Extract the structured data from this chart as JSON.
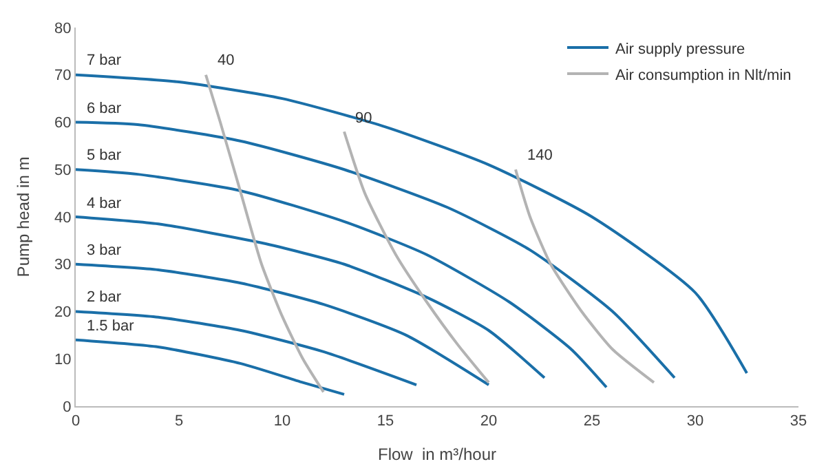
{
  "chart_data": {
    "type": "line",
    "xlabel": "Flow  in m³/hour",
    "ylabel": "Pump head in m",
    "xlim": [
      0,
      35
    ],
    "xticks": [
      0,
      5,
      10,
      15,
      20,
      25,
      30,
      35
    ],
    "ylim": [
      0,
      80
    ],
    "yticks": [
      0,
      10,
      20,
      30,
      40,
      50,
      60,
      70,
      80
    ],
    "legend": "top right",
    "marker": "none",
    "line_style": "solid",
    "series": [
      {
        "name": "Air supply pressure",
        "color": "#1a6fa8",
        "x": [
          0,
          5,
          10,
          15,
          20,
          25,
          30,
          32.5
        ],
        "values": [
          70,
          68.5,
          65,
          59,
          51,
          40,
          24,
          7
        ]
      },
      {
        "color": "#1a6fa8",
        "x": [
          0,
          3,
          8,
          13,
          18,
          22,
          26,
          29
        ],
        "values": [
          60,
          59.5,
          56,
          50,
          42,
          33,
          20,
          6
        ]
      },
      {
        "color": "#1a6fa8",
        "x": [
          0,
          3,
          8,
          13,
          17,
          21,
          24,
          25.7
        ],
        "values": [
          50,
          49,
          45.5,
          39,
          32,
          22,
          12,
          4
        ]
      },
      {
        "color": "#1a6fa8",
        "x": [
          0,
          4,
          9,
          13,
          17,
          20,
          22.7
        ],
        "values": [
          40,
          38.5,
          34.5,
          30,
          23,
          16,
          6
        ]
      },
      {
        "color": "#1a6fa8",
        "x": [
          0,
          4,
          8,
          12,
          16,
          20
        ],
        "values": [
          30,
          28.8,
          26,
          21.5,
          15,
          4.5
        ]
      },
      {
        "color": "#1a6fa8",
        "x": [
          0,
          4,
          8,
          12,
          16.5
        ],
        "values": [
          20,
          18.8,
          16,
          11.5,
          4.5
        ]
      },
      {
        "color": "#1a6fa8",
        "x": [
          0,
          4,
          8,
          11,
          13
        ],
        "values": [
          14,
          12.5,
          9,
          5,
          2.5
        ]
      },
      {
        "name": "Air consumption in Nlt/min",
        "color": "#b3b3b3",
        "x": [
          6.3,
          7,
          8,
          9,
          10,
          11,
          12
        ],
        "values": [
          70,
          60,
          45,
          30,
          19,
          10,
          3
        ]
      },
      {
        "color": "#b3b3b3",
        "x": [
          13,
          14,
          15.5,
          17,
          18.5,
          20
        ],
        "values": [
          58,
          45,
          32,
          22,
          13,
          5
        ]
      },
      {
        "color": "#b3b3b3",
        "x": [
          21.3,
          22,
          23,
          24.5,
          26,
          28
        ],
        "values": [
          50,
          40,
          30,
          20,
          12,
          5
        ]
      }
    ],
    "annotations": [
      {
        "text": "7 bar",
        "x": 0,
        "y": 70
      },
      {
        "text": "6 bar",
        "x": 0,
        "y": 60
      },
      {
        "text": "5 bar",
        "x": 0,
        "y": 50
      },
      {
        "text": "4 bar",
        "x": 0,
        "y": 40
      },
      {
        "text": "3 bar",
        "x": 0,
        "y": 30
      },
      {
        "text": "2 bar",
        "x": 0,
        "y": 20
      },
      {
        "text": "1.5 bar",
        "x": 0,
        "y": 14
      },
      {
        "text": "40",
        "x": 6.3,
        "y": 70
      },
      {
        "text": "90",
        "x": 13,
        "y": 58
      },
      {
        "text": "140",
        "x": 21.3,
        "y": 50
      }
    ]
  }
}
